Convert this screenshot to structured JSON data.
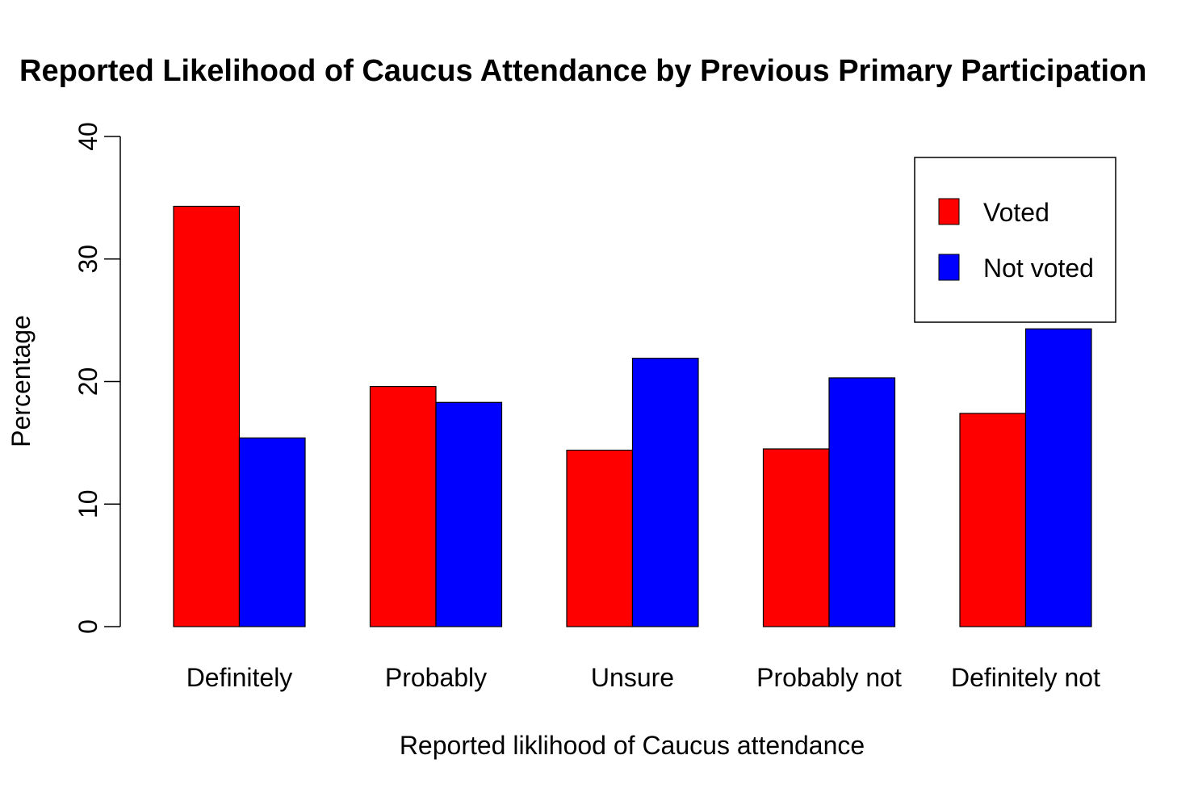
{
  "chart_data": {
    "type": "bar",
    "title": "Reported Likelihood of Caucus Attendance by Previous Primary Participation",
    "xlabel": "Reported liklihood of Caucus attendance",
    "ylabel": "Percentage",
    "ylim": [
      0,
      40
    ],
    "yticks": [
      0,
      10,
      20,
      30,
      40
    ],
    "categories": [
      "Definitely",
      "Probably",
      "Unsure",
      "Probably not",
      "Definitely not"
    ],
    "series": [
      {
        "name": "Voted",
        "color": "#ff0000",
        "values": [
          34.3,
          19.6,
          14.4,
          14.5,
          17.4
        ]
      },
      {
        "name": "Not voted",
        "color": "#0000ff",
        "values": [
          15.4,
          18.3,
          21.9,
          20.3,
          24.3
        ]
      }
    ],
    "legend": {
      "position": "top-right"
    },
    "grid": false
  }
}
